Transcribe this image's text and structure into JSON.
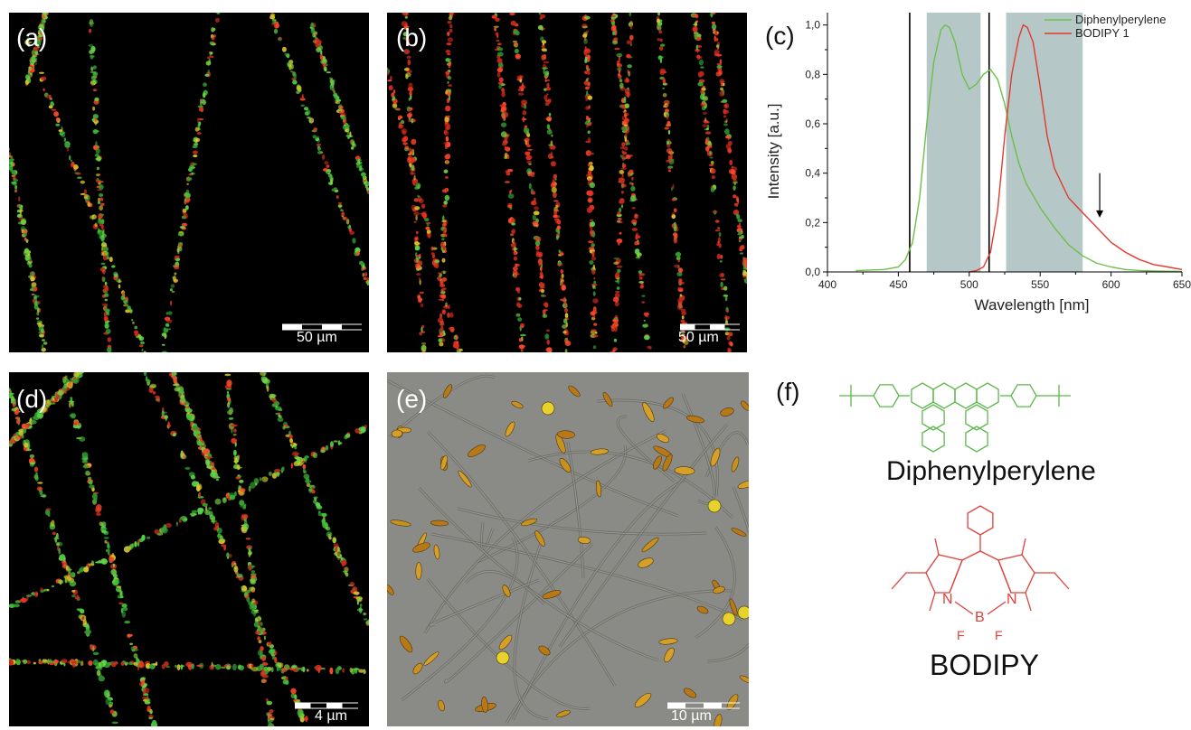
{
  "panels": {
    "a": {
      "label": "(a)",
      "scale": "50 µm"
    },
    "b": {
      "label": "(b)",
      "scale": "50 µm"
    },
    "c": {
      "label": "(c)"
    },
    "d": {
      "label": "(d)",
      "scale": "4 µm"
    },
    "e": {
      "label": "(e)",
      "scale": "10 µm"
    },
    "f": {
      "label": "(f)"
    }
  },
  "structures": {
    "top": {
      "name": "Diphenylperylene",
      "color": "#5cb84a"
    },
    "bottom": {
      "name": "BODIPY",
      "color": "#e0403a",
      "atoms": {
        "n1": "N",
        "n2": "N",
        "b": "B",
        "f1": "F",
        "f2": "F"
      }
    }
  },
  "chart_data": {
    "type": "line",
    "xlabel": "Wavelength [nm]",
    "ylabel": "Intensity [a.u.]",
    "xlim": [
      400,
      650
    ],
    "ylim": [
      0,
      1.05
    ],
    "xticks": [
      "400",
      "450",
      "500",
      "550",
      "600",
      "650"
    ],
    "yticks": [
      "0,0",
      "0,2",
      "0,4",
      "0,6",
      "0,8",
      "1,0"
    ],
    "legend_position": "top-right",
    "series": [
      {
        "name": "Diphenylperylene",
        "color": "#6cc04a",
        "x": [
          420,
          440,
          450,
          455,
          460,
          465,
          470,
          475,
          480,
          483,
          486,
          490,
          495,
          500,
          505,
          510,
          515,
          520,
          525,
          530,
          535,
          540,
          550,
          560,
          570,
          580,
          590,
          600,
          610,
          620,
          630,
          640,
          650
        ],
        "y": [
          0.005,
          0.01,
          0.02,
          0.05,
          0.12,
          0.3,
          0.6,
          0.85,
          0.98,
          1.0,
          0.99,
          0.93,
          0.8,
          0.74,
          0.76,
          0.8,
          0.82,
          0.78,
          0.68,
          0.55,
          0.44,
          0.36,
          0.26,
          0.18,
          0.11,
          0.065,
          0.035,
          0.02,
          0.01,
          0.006,
          0.004,
          0.003,
          0.002
        ]
      },
      {
        "name": "BODIPY 1",
        "color": "#e23a2e",
        "x": [
          500,
          505,
          510,
          515,
          520,
          525,
          530,
          535,
          538,
          541,
          545,
          550,
          555,
          560,
          570,
          580,
          590,
          600,
          610,
          620,
          630,
          640,
          650
        ],
        "y": [
          0.0,
          0.005,
          0.02,
          0.08,
          0.25,
          0.55,
          0.8,
          0.95,
          1.0,
          0.99,
          0.93,
          0.75,
          0.55,
          0.42,
          0.3,
          0.24,
          0.18,
          0.12,
          0.08,
          0.05,
          0.03,
          0.02,
          0.01
        ]
      }
    ],
    "vlines": [
      458,
      514
    ],
    "bands": [
      [
        470,
        508
      ],
      [
        526,
        580
      ]
    ],
    "arrow_x": 592,
    "arrow_y": [
      0.4,
      0.22
    ]
  }
}
